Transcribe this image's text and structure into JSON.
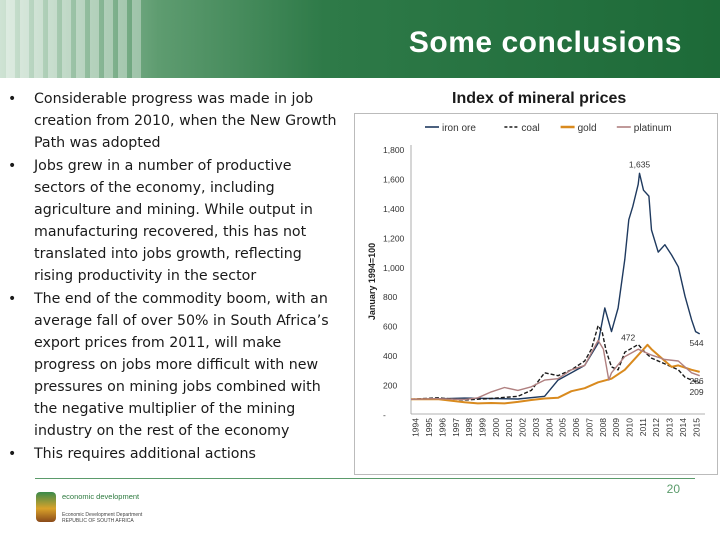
{
  "header": {
    "title": "Some conclusions",
    "colors": {
      "bar": "#1d6a38",
      "stripe": "#ffffff"
    }
  },
  "bullets": [
    "Considerable progress was made in job creation from 2010, when the New Growth Path was adopted",
    "Jobs grew in a number of productive sectors of the economy, including agriculture and mining. While output in manufacturing recovered, this has not translated into jobs growth, reflecting rising productivity in the sector",
    "The end of the commodity boom, with an average fall of over 50% in South Africa’s export prices from 2011, will make progress on jobs more difficult with new pressures on mining jobs combined with the negative multiplier of the mining industry on the rest of the economy",
    "This requires additional actions"
  ],
  "chart_title": "Index of mineral prices",
  "chart_data": {
    "type": "line",
    "ylabel": "January 1994=100",
    "ylim": [
      0,
      1800
    ],
    "yticks": [
      "-",
      "200",
      "400",
      "600",
      "800",
      "1,000",
      "1,200",
      "1,400",
      "1,600",
      "1,800"
    ],
    "ytick_values": [
      0,
      200,
      400,
      600,
      800,
      1000,
      1200,
      1400,
      1600,
      1800
    ],
    "x_start": 1994,
    "x_end": 2016,
    "categories": [
      "1994",
      "1995",
      "1996",
      "1997",
      "1998",
      "1999",
      "2000",
      "2001",
      "2002",
      "2003",
      "2004",
      "2005",
      "2006",
      "2007",
      "2008",
      "2009",
      "2010",
      "2011",
      "2012",
      "2013",
      "2014",
      "2015"
    ],
    "legend_position": "top",
    "series": [
      {
        "name": "iron ore",
        "color": "#1f3a5f",
        "style": "solid",
        "x": [
          1994,
          1996,
          1998,
          2000,
          2002,
          2004,
          2005,
          2006,
          2007,
          2008.0,
          2008.5,
          2009,
          2009.5,
          2010,
          2010.3,
          2010.6,
          2011.0,
          2011.1,
          2011.4,
          2011.8,
          2012,
          2012.5,
          2013,
          2013.5,
          2014,
          2014.5,
          2015,
          2015.3,
          2015.6
        ],
        "y": [
          100,
          103,
          108,
          105,
          102,
          120,
          230,
          280,
          330,
          480,
          720,
          560,
          720,
          1050,
          1320,
          1410,
          1560,
          1635,
          1520,
          1480,
          1250,
          1100,
          1150,
          1080,
          1000,
          800,
          640,
          560,
          544
        ]
      },
      {
        "name": "coal",
        "color": "#1a1a1a",
        "style": "dashed",
        "x": [
          1994,
          1996,
          1998,
          2000,
          2002,
          2003,
          2004,
          2005,
          2006,
          2007,
          2007.5,
          2008.0,
          2008.3,
          2008.6,
          2009,
          2009.5,
          2010,
          2011,
          2011.5,
          2012,
          2013,
          2014,
          2014.5,
          2015,
          2015.6
        ],
        "y": [
          100,
          110,
          95,
          105,
          120,
          160,
          280,
          260,
          300,
          360,
          440,
          600,
          560,
          430,
          320,
          300,
          420,
          472,
          420,
          380,
          340,
          300,
          250,
          230,
          209
        ]
      },
      {
        "name": "gold",
        "color": "#d98a1e",
        "style": "solid",
        "x": [
          1994,
          1996,
          1998,
          1999,
          2000,
          2001,
          2002,
          2003,
          2004,
          2005,
          2006,
          2007,
          2008,
          2009,
          2010,
          2011,
          2011.7,
          2012,
          2013,
          2013.5,
          2014,
          2015,
          2015.6
        ],
        "y": [
          100,
          101,
          80,
          72,
          75,
          72,
          82,
          95,
          105,
          110,
          155,
          175,
          215,
          240,
          300,
          400,
          470,
          440,
          360,
          320,
          330,
          300,
          286
        ]
      },
      {
        "name": "platinum",
        "color": "#b08080",
        "style": "solid",
        "x": [
          1994,
          1996,
          1998,
          1999,
          2000,
          2001,
          2002,
          2003,
          2004,
          2005,
          2006,
          2007,
          2008.0,
          2008.4,
          2008.8,
          2009,
          2010,
          2011,
          2011.5,
          2012,
          2013,
          2014,
          2015,
          2015.6
        ],
        "y": [
          100,
          104,
          98,
          110,
          150,
          180,
          160,
          185,
          230,
          240,
          300,
          330,
          500,
          440,
          230,
          280,
          390,
          440,
          420,
          400,
          370,
          360,
          280,
          260
        ]
      }
    ],
    "data_labels": [
      {
        "text": "1,635",
        "series": "iron ore",
        "x": 2011.1,
        "y": 1635
      },
      {
        "text": "472",
        "series": "coal",
        "x": 2011.0,
        "y": 472
      },
      {
        "text": "544",
        "series": "iron ore",
        "x": 2015.6,
        "y": 544
      },
      {
        "text": "286",
        "series": "gold",
        "x": 2015.6,
        "y": 286
      },
      {
        "text": "209",
        "series": "coal",
        "x": 2015.6,
        "y": 209
      }
    ]
  },
  "footer": {
    "logo_line1": "economic development",
    "logo_line2": "Economic Development Department REPUBLIC OF SOUTH AFRICA",
    "page_number": "20"
  }
}
